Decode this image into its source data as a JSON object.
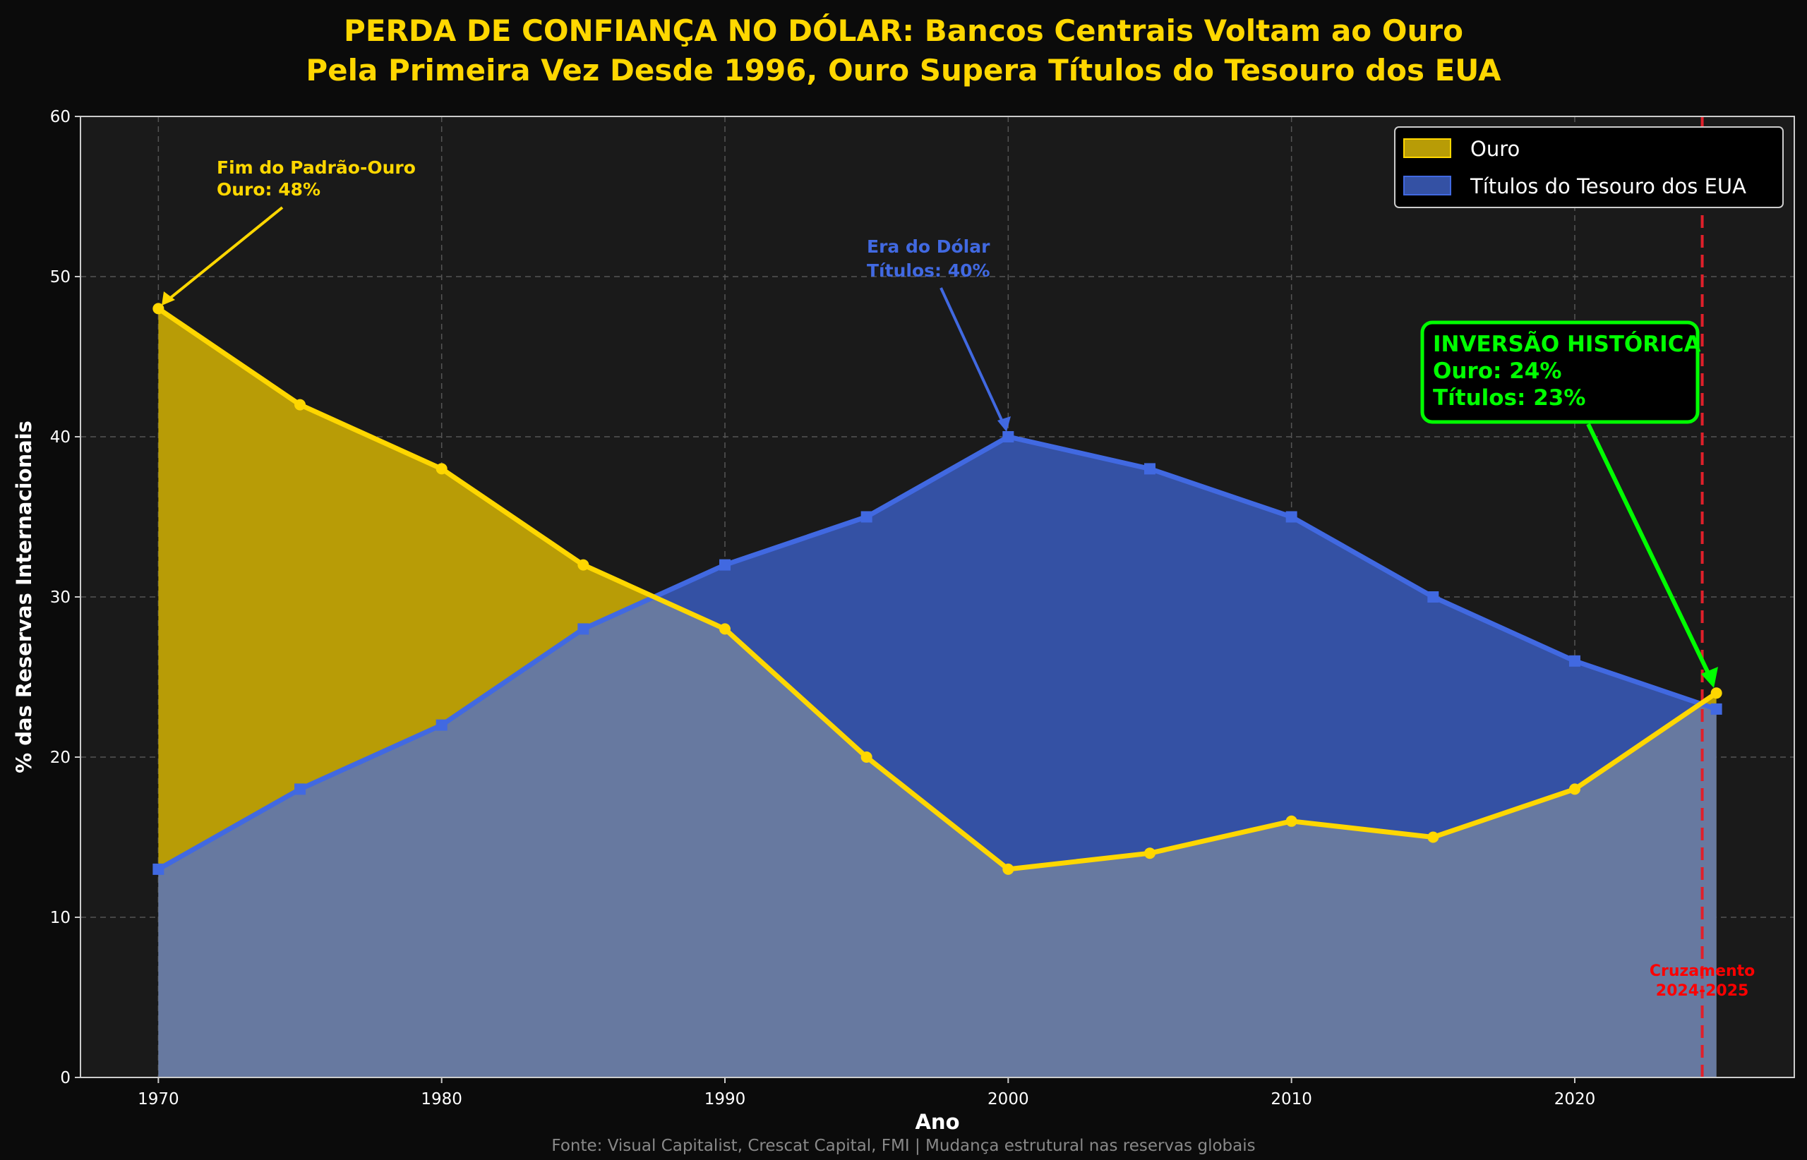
{
  "chart_data": {
    "type": "area",
    "title": [
      "PERDA DE CONFIANÇA NO DÓLAR: Bancos Centrais Voltam ao Ouro",
      "Pela Primeira Vez Desde 1996, Ouro Supera Títulos do Tesouro dos EUA"
    ],
    "xlabel": "Ano",
    "ylabel": "% das Reservas Internacionais",
    "xlim": [
      1967.25,
      2027.75
    ],
    "ylim": [
      0,
      60
    ],
    "xticks": [
      1970,
      1980,
      1990,
      2000,
      2010,
      2020
    ],
    "yticks": [
      0,
      10,
      20,
      30,
      40,
      50,
      60
    ],
    "grid": true,
    "legend_position": "top-right",
    "x": [
      1970,
      1975,
      1980,
      1985,
      1990,
      1995,
      2000,
      2005,
      2010,
      2015,
      2020,
      2025
    ],
    "series": [
      {
        "name": "Ouro",
        "color": "#FFD700",
        "fill": "#b89c06",
        "marker": "circle",
        "values": [
          48,
          42,
          38,
          32,
          28,
          20,
          13,
          14,
          16,
          15,
          18,
          24
        ]
      },
      {
        "name": "Títulos do Tesouro dos EUA",
        "color": "#4169E1",
        "fill": "#3451a4",
        "marker": "square",
        "values": [
          13,
          18,
          22,
          28,
          32,
          35,
          40,
          38,
          35,
          30,
          26,
          23
        ]
      }
    ],
    "overlap_fill": "#6779a0",
    "crossover_line": {
      "x": 2024.5,
      "color": "#e0202a",
      "label": [
        "Cruzamento",
        "2024-2025"
      ]
    },
    "annotations": [
      {
        "lines": [
          "Fim do Padrão-Ouro",
          "Ouro: 48%"
        ],
        "color": "#FFD700",
        "target": [
          1970,
          48
        ]
      },
      {
        "lines": [
          "Era do Dólar",
          "Títulos: 40%"
        ],
        "color": "#4169E1",
        "target": [
          2000,
          40
        ]
      },
      {
        "lines": [
          "INVERSÃO HISTÓRICA",
          "Ouro: 24%",
          "Títulos: 23%"
        ],
        "color": "#00ff00",
        "target": [
          2025,
          24
        ]
      }
    ],
    "footer": "Fonte: Visual Capitalist, Crescat Capital, FMI | Mudança estrutural nas reservas globais"
  }
}
